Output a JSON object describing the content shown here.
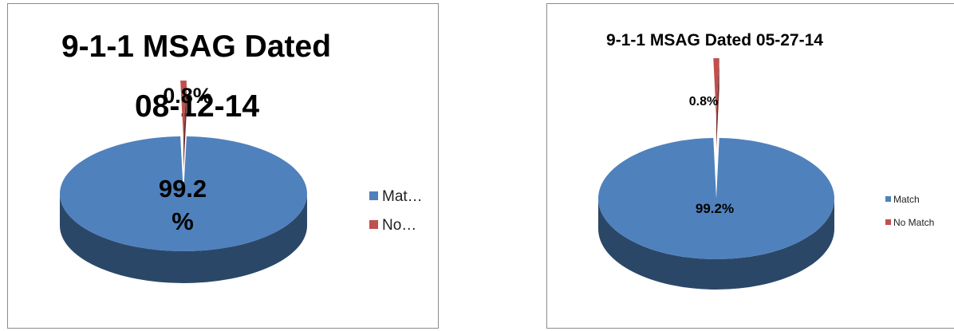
{
  "chart_data": [
    {
      "type": "pie",
      "title": "9-1-1 MSAG Dated 08-12-14",
      "categories": [
        "Match",
        "No Match"
      ],
      "values": [
        99.2,
        0.8
      ],
      "data_labels": [
        "99.2\n%",
        "0.8%"
      ],
      "legend": {
        "placement": "right",
        "entries": [
          "Mat…",
          "No…"
        ]
      },
      "colors": [
        "#4f81bd",
        "#c0504d"
      ]
    },
    {
      "type": "pie",
      "title": "9-1-1 MSAG Dated 05-27-14",
      "categories": [
        "Match",
        "No Match"
      ],
      "values": [
        99.2,
        0.8
      ],
      "data_labels": [
        "99.2%",
        "0.8%"
      ],
      "legend": {
        "placement": "right",
        "entries": [
          "Match",
          "No Match"
        ]
      },
      "colors": [
        "#4f81bd",
        "#c0504d"
      ]
    }
  ]
}
